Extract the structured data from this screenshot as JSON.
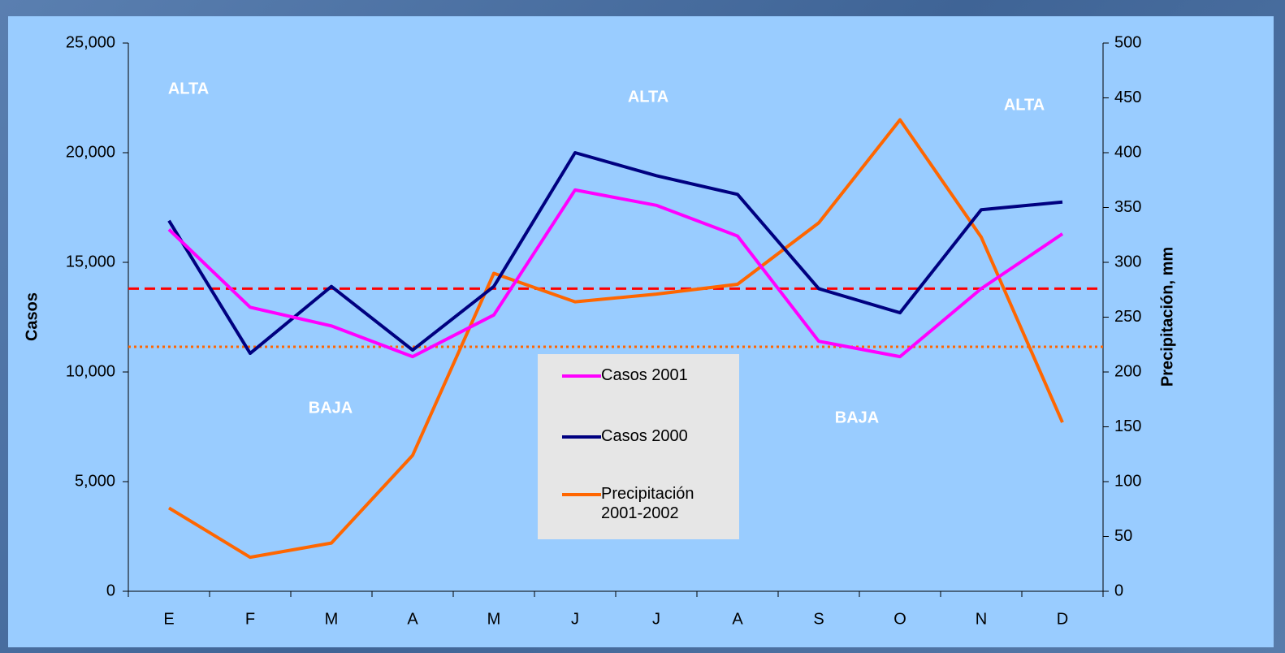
{
  "chart_data": {
    "type": "line",
    "categories": [
      "E",
      "F",
      "M",
      "A",
      "M",
      "J",
      "J",
      "A",
      "S",
      "O",
      "N",
      "D"
    ],
    "y_label": "Casos",
    "y2_label": "Precipitación, mm",
    "ylim": [
      0,
      25000
    ],
    "yticks": [
      0,
      {
        "value": 5000,
        "label": "5,000"
      },
      {
        "value": 10000,
        "label": "10,000"
      },
      {
        "value": 15000,
        "label": "15,000"
      },
      {
        "value": 20000,
        "label": "20,000"
      },
      {
        "value": 25000,
        "label": "25,000"
      }
    ],
    "y2lim": [
      0,
      500
    ],
    "y2ticks": [
      0,
      50,
      100,
      150,
      200,
      250,
      300,
      350,
      400,
      450,
      500
    ],
    "legend": "center",
    "series": [
      {
        "name": "Casos 2001",
        "color": "#ff00ff",
        "values": [
          16500,
          12950,
          12100,
          10700,
          12600,
          18300,
          17600,
          16200,
          11400,
          10700,
          13800,
          16300
        ]
      },
      {
        "name": "Casos 2000",
        "color": "#000080",
        "values": [
          16900,
          10850,
          13900,
          11000,
          13900,
          20000,
          18950,
          18100,
          13800,
          12700,
          17400,
          17750
        ]
      },
      {
        "name": "Precipitación 2001-2002",
        "color": "#ff6600",
        "axis": "y2",
        "values": [
          76,
          31,
          44,
          124,
          290,
          264,
          271,
          280,
          336,
          430,
          323,
          154
        ]
      }
    ],
    "reference_lines": [
      {
        "value": 13800,
        "color": "#ff0000",
        "style": "dashed"
      },
      {
        "value": 11150,
        "color": "#ff6600",
        "style": "dotted"
      }
    ],
    "annotations": [
      "ALTA",
      "ALTA",
      "ALTA",
      "BAJA",
      "BAJA"
    ]
  }
}
